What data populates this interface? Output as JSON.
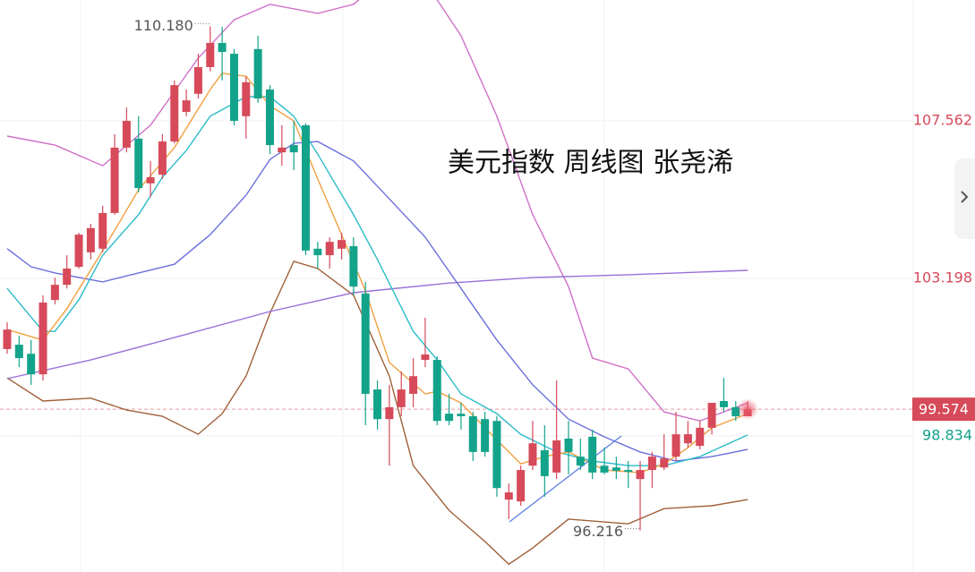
{
  "chart_data": {
    "type": "candlestick",
    "title": "美元指数 周线图 张尧浠",
    "ylim": [
      95.065,
      110.909
    ],
    "xlim": [
      -0.6,
      75.86
    ],
    "yticks": [
      107.562,
      103.198,
      98.834
    ],
    "last_price": 99.574,
    "up_color": "#d64a5a",
    "down_color": "#13a38b",
    "grid": true,
    "high_label": {
      "value": 110.18,
      "label": "110.180"
    },
    "low_label": {
      "value": 96.216,
      "label": "96.216"
    },
    "open": [
      101.24,
      101.36,
      101.11,
      100.54,
      102.6,
      103.02,
      103.52,
      103.92,
      104.02,
      105.01,
      106.82,
      107.07,
      105.83,
      106.07,
      106.99,
      107.81,
      108.31,
      109.05,
      109.72,
      109.42,
      107.69,
      109.55,
      108.43,
      106.69,
      106.89,
      107.44,
      104.02,
      103.84,
      104.02,
      104.09,
      102.78,
      100.12,
      99.3,
      99.63,
      100.0,
      100.94,
      100.94,
      99.45,
      99.45,
      99.38,
      99.3,
      99.25,
      97.07,
      97.02,
      98.01,
      98.44,
      97.82,
      98.76,
      98.26,
      98.81,
      98.01,
      97.96,
      97.89,
      97.64,
      97.89,
      97.96,
      98.26,
      98.63,
      98.56,
      99.06,
      99.8,
      99.63,
      99.38
    ],
    "close": [
      101.78,
      100.99,
      100.54,
      102.53,
      103.02,
      103.47,
      104.41,
      104.59,
      105.01,
      106.82,
      107.56,
      105.7,
      106.0,
      106.99,
      108.55,
      108.13,
      109.05,
      109.72,
      109.47,
      107.56,
      108.63,
      108.18,
      106.89,
      106.82,
      106.69,
      103.97,
      103.84,
      104.21,
      104.26,
      102.97,
      100.0,
      99.3,
      99.63,
      100.12,
      100.49,
      101.09,
      99.25,
      99.25,
      99.38,
      98.39,
      98.39,
      97.39,
      97.27,
      97.89,
      98.63,
      97.72,
      98.71,
      98.39,
      98.01,
      97.82,
      97.82,
      97.87,
      97.84,
      97.89,
      98.26,
      98.21,
      98.88,
      98.88,
      99.06,
      99.75,
      99.63,
      99.38,
      99.574
    ],
    "high": [
      101.98,
      101.61,
      101.49,
      102.73,
      103.22,
      103.84,
      104.46,
      104.71,
      105.21,
      107.19,
      107.93,
      107.69,
      106.45,
      107.19,
      108.68,
      108.43,
      109.42,
      110.18,
      110.17,
      109.55,
      108.8,
      109.92,
      108.55,
      107.44,
      107.56,
      107.49,
      104.21,
      104.34,
      104.46,
      104.34,
      103.1,
      100.37,
      100.25,
      100.62,
      100.99,
      102.11,
      101.04,
      100.0,
      99.75,
      99.5,
      99.5,
      99.38,
      97.52,
      98.01,
      99.25,
      99.13,
      100.37,
      99.25,
      98.76,
      99.01,
      98.51,
      98.26,
      98.14,
      98.14,
      98.39,
      98.88,
      99.5,
      99.25,
      99.25,
      99.75,
      100.44,
      99.8,
      99.8
    ],
    "low": [
      101.11,
      100.74,
      100.25,
      100.37,
      102.48,
      102.92,
      103.47,
      103.72,
      103.92,
      104.96,
      106.69,
      105.58,
      105.45,
      105.95,
      106.94,
      107.69,
      108.18,
      108.93,
      108.68,
      107.44,
      107.07,
      108.06,
      106.64,
      106.32,
      106.2,
      103.84,
      103.47,
      103.47,
      103.72,
      102.73,
      99.13,
      99.01,
      98.01,
      99.38,
      99.63,
      100.74,
      99.13,
      99.13,
      99.01,
      98.14,
      98.26,
      97.15,
      96.53,
      96.9,
      97.89,
      97.15,
      97.64,
      97.77,
      97.89,
      97.64,
      97.77,
      97.64,
      97.39,
      96.216,
      97.39,
      97.89,
      98.14,
      98.51,
      98.46,
      98.88,
      99.5,
      99.25,
      99.45
    ],
    "overlays": [
      {
        "color": "#d070c8",
        "x": [
          0,
          4,
          8,
          12,
          16,
          19,
          22,
          26,
          29,
          33,
          36,
          38,
          41,
          44,
          47,
          49,
          52,
          55,
          58,
          62
        ],
        "values": [
          107.14,
          106.89,
          106.32,
          107.44,
          109.3,
          110.36,
          110.79,
          110.54,
          110.79,
          111.9,
          110.91,
          109.92,
          107.69,
          104.96,
          102.97,
          100.99,
          100.69,
          99.5,
          99.25,
          99.75
        ]
      },
      {
        "color": "#a0603a",
        "x": [
          0,
          3,
          7,
          10,
          13,
          16,
          18,
          20,
          22,
          24,
          26,
          29,
          32,
          34,
          37,
          40,
          42,
          44,
          47,
          52,
          55,
          59,
          62
        ],
        "values": [
          100.44,
          99.8,
          99.88,
          99.55,
          99.38,
          98.88,
          99.45,
          100.49,
          102.23,
          103.67,
          103.47,
          102.73,
          100.49,
          98.01,
          96.77,
          95.91,
          95.28,
          95.73,
          96.53,
          96.4,
          96.82,
          96.9,
          97.07
        ]
      },
      {
        "color": "#9a6fd8",
        "x": [
          0,
          7,
          14,
          22,
          29,
          37,
          44,
          52,
          62
        ],
        "values": [
          100.42,
          100.94,
          101.56,
          102.28,
          102.8,
          103.07,
          103.22,
          103.3,
          103.42
        ]
      },
      {
        "color": "#6b6fdc",
        "x": [
          0,
          2,
          4,
          8,
          11,
          14,
          17,
          20,
          22,
          24,
          26,
          29,
          32,
          35,
          38,
          41,
          44,
          47,
          50,
          53,
          56,
          59,
          62
        ],
        "values": [
          104.02,
          103.52,
          103.35,
          103.1,
          103.35,
          103.59,
          104.41,
          105.5,
          106.49,
          106.94,
          106.99,
          106.45,
          105.4,
          104.34,
          102.92,
          101.49,
          100.25,
          99.3,
          98.81,
          98.39,
          98.14,
          98.26,
          98.46
        ]
      },
      {
        "color": "#2bbcc8",
        "x": [
          0,
          3,
          4,
          6,
          8,
          11,
          13,
          15,
          17,
          20,
          22,
          24,
          26,
          29,
          31,
          34,
          36,
          38,
          41,
          43,
          46,
          49,
          52,
          55,
          58,
          62
        ],
        "values": [
          102.92,
          101.73,
          101.73,
          102.6,
          103.84,
          104.96,
          106.0,
          106.74,
          107.69,
          108.23,
          108.23,
          107.69,
          106.64,
          104.96,
          103.72,
          101.73,
          100.94,
          100.0,
          99.45,
          98.88,
          98.39,
          98.14,
          98.01,
          98.01,
          98.26,
          98.86
        ]
      },
      {
        "color": "#f0a040",
        "x": [
          0,
          3,
          5,
          8,
          11,
          14,
          17,
          18,
          20,
          22,
          24,
          26,
          28,
          30,
          32,
          35,
          36,
          38,
          40,
          43,
          45,
          47,
          50,
          53,
          55,
          57,
          59,
          62
        ],
        "values": [
          101.78,
          101.49,
          102.36,
          103.97,
          105.65,
          106.82,
          108.43,
          108.88,
          108.8,
          107.98,
          107.56,
          105.95,
          104.41,
          102.85,
          100.87,
          100.0,
          100.07,
          99.75,
          99.06,
          98.06,
          98.26,
          98.39,
          97.89,
          97.82,
          98.06,
          98.51,
          99.06,
          99.45
        ]
      }
    ]
  }
}
